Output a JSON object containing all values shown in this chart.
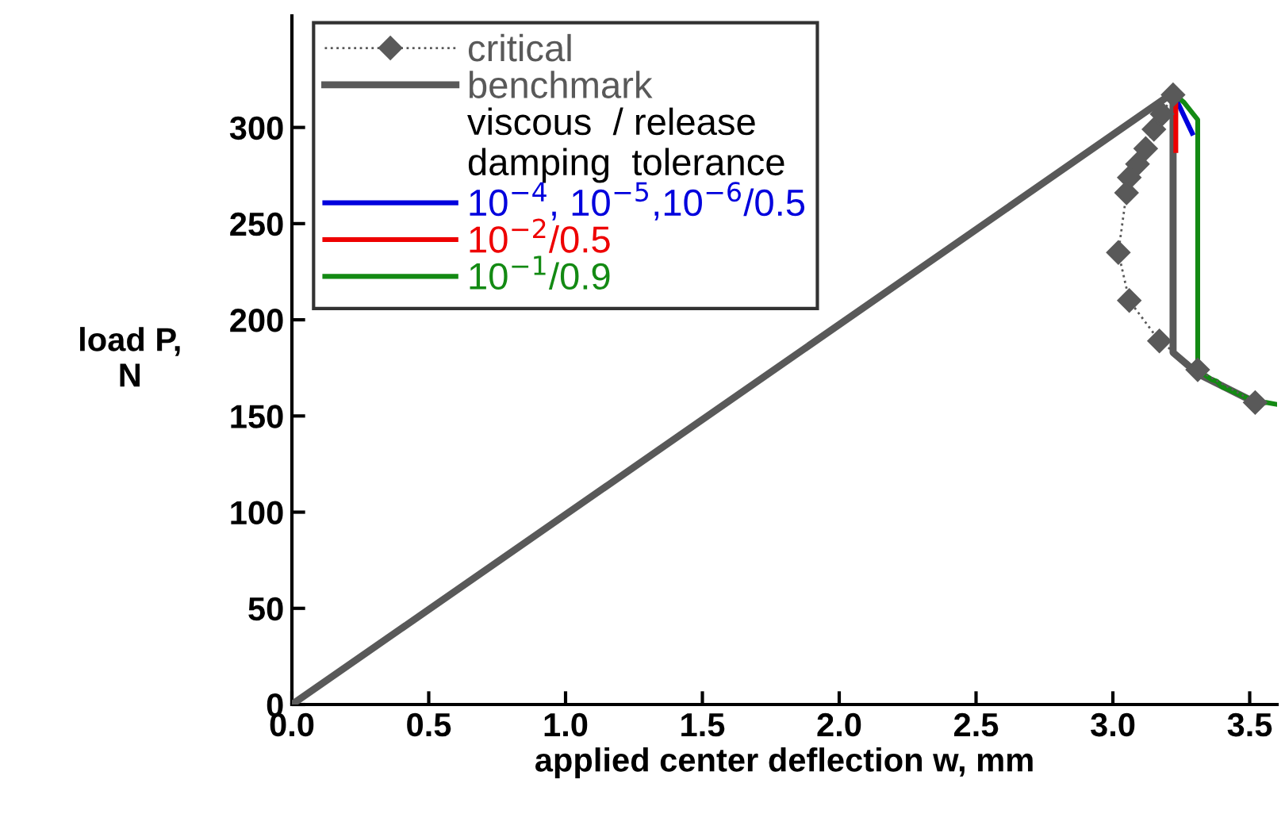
{
  "chart_data": {
    "type": "line",
    "xlabel": "applied center deflection w, mm",
    "ylabel": "load P,\nN",
    "legend_title": "viscous  / release\ndamping  tolerance",
    "xlim": [
      0,
      3.6
    ],
    "ylim": [
      0,
      358
    ],
    "xticks": [
      {
        "value": 0,
        "label": "0.0"
      },
      0.5,
      {
        "value": 1,
        "label": "1.0"
      },
      1.5,
      {
        "value": 2,
        "label": "2.0"
      },
      2.5,
      {
        "value": 3,
        "label": "3.0"
      },
      3.5
    ],
    "yticks": [
      0,
      50,
      100,
      150,
      200,
      250,
      300
    ],
    "grid": false,
    "legend": "top left",
    "series": [
      {
        "name": "critical",
        "color": "#595959",
        "marker": "diamond",
        "line_style": "dotted",
        "x": [
          3.22,
          3.18,
          3.15,
          3.12,
          3.09,
          3.06,
          3.05,
          3.02,
          3.06,
          3.17,
          3.31,
          3.52
        ],
        "values": [
          317,
          307,
          299,
          289,
          281,
          274,
          266,
          235,
          210,
          189,
          174,
          157
        ]
      },
      {
        "name": "benchmark",
        "color": "#595959",
        "line_style": "solid",
        "x": [
          0,
          3.22,
          3.22,
          3.31,
          3.52
        ],
        "values": [
          0,
          318,
          183,
          172,
          157
        ]
      },
      {
        "name": "10$^{−4}$, 10$^{−5}$,10$^{−6}$/0.5",
        "color": "#0000dd",
        "line_style": "solid",
        "x": [
          3.22,
          3.29
        ],
        "values": [
          318,
          297
        ]
      },
      {
        "name": "10$^{−2}$/0.5",
        "color": "#ee0000",
        "line_style": "solid",
        "x": [
          3.23,
          3.23
        ],
        "values": [
          316,
          288
        ]
      },
      {
        "name": "10$^{−1}$/0.9",
        "color": "#138a13",
        "line_style": "solid",
        "x": [
          3.22,
          3.26,
          3.31,
          3.31,
          3.34,
          3.36,
          3.38,
          3.4,
          3.42,
          3.45,
          3.48,
          3.51,
          3.53,
          3.56,
          3.6
        ],
        "values": [
          318,
          313,
          304,
          174,
          171,
          169,
          168,
          165,
          164,
          162,
          160,
          158,
          156,
          157,
          156
        ]
      }
    ]
  }
}
